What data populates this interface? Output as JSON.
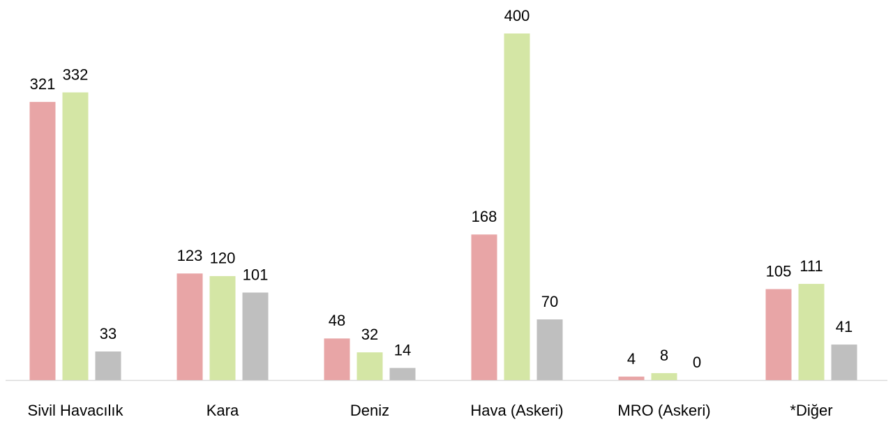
{
  "chart_data": {
    "type": "bar",
    "categories": [
      "Sivil Havacılık",
      "Kara",
      "Deniz",
      "Hava (Askeri)",
      "MRO (Askeri)",
      "*Diğer"
    ],
    "series": [
      {
        "color": "#e8a5a6",
        "values": [
          321,
          123,
          48,
          168,
          4,
          105
        ]
      },
      {
        "color": "#d4e6a5",
        "values": [
          332,
          120,
          32,
          400,
          8,
          111
        ]
      },
      {
        "color": "#bfbfbf",
        "values": [
          33,
          101,
          14,
          70,
          0,
          41
        ]
      }
    ]
  }
}
